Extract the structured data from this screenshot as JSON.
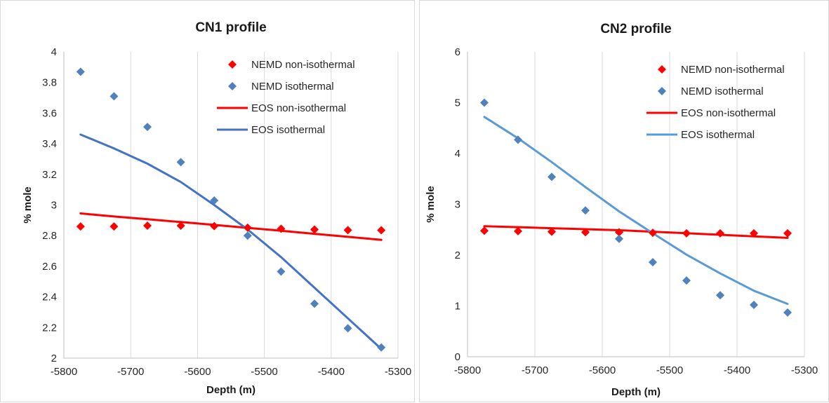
{
  "chart_data": [
    {
      "type": "scatter",
      "title": "CN1 profile",
      "xlabel": "Depth (m)",
      "ylabel": "% mole",
      "xlim": [
        -5800,
        -5300
      ],
      "ylim": [
        2,
        4
      ],
      "xticks": [
        "-5800",
        "-5700",
        "-5600",
        "-5500",
        "-5400",
        "-5300"
      ],
      "yticks": [
        "2",
        "2.2",
        "2.4",
        "2.6",
        "2.8",
        "3",
        "3.2",
        "3.4",
        "3.6",
        "3.8",
        "4"
      ],
      "grid": "vertical",
      "legend_position": "top-right",
      "series": [
        {
          "name": "NEMD non-isothermal",
          "kind": "marker",
          "color": "#ff0000",
          "x": [
            -5775,
            -5725,
            -5675,
            -5625,
            -5575,
            -5525,
            -5475,
            -5425,
            -5375,
            -5325
          ],
          "y": [
            2.86,
            2.86,
            2.865,
            2.865,
            2.862,
            2.852,
            2.845,
            2.84,
            2.836,
            2.835
          ]
        },
        {
          "name": "NEMD isothermal",
          "kind": "marker",
          "color": "#4f81bd",
          "x": [
            -5775,
            -5725,
            -5675,
            -5625,
            -5575,
            -5525,
            -5475,
            -5425,
            -5375,
            -5325
          ],
          "y": [
            3.87,
            3.71,
            3.51,
            3.28,
            3.03,
            2.8,
            2.565,
            2.355,
            2.195,
            2.07
          ]
        },
        {
          "name": "EOS non-isothermal",
          "kind": "line",
          "color": "#ff0000",
          "x": [
            -5775,
            -5725,
            -5675,
            -5625,
            -5575,
            -5525,
            -5475,
            -5425,
            -5375,
            -5325
          ],
          "y": [
            2.945,
            2.925,
            2.907,
            2.889,
            2.87,
            2.851,
            2.832,
            2.812,
            2.792,
            2.772
          ]
        },
        {
          "name": "EOS isothermal",
          "kind": "line",
          "color": "#4472c4",
          "x": [
            -5775,
            -5725,
            -5675,
            -5625,
            -5575,
            -5525,
            -5475,
            -5425,
            -5375,
            -5325
          ],
          "y": [
            3.46,
            3.37,
            3.27,
            3.15,
            3.0,
            2.84,
            2.66,
            2.46,
            2.26,
            2.06
          ]
        }
      ]
    },
    {
      "type": "scatter",
      "title": "CN2 profile",
      "xlabel": "Depth (m)",
      "ylabel": "% mole",
      "xlim": [
        -5800,
        -5300
      ],
      "ylim": [
        0,
        6
      ],
      "xticks": [
        "-5800",
        "-5700",
        "-5600",
        "-5500",
        "-5400",
        "-5300"
      ],
      "yticks": [
        "0",
        "1",
        "2",
        "3",
        "4",
        "5",
        "6"
      ],
      "grid": "vertical",
      "legend_position": "top-right",
      "series": [
        {
          "name": "NEMD non-isothermal",
          "kind": "marker",
          "color": "#ff0000",
          "x": [
            -5775,
            -5725,
            -5675,
            -5625,
            -5575,
            -5525,
            -5475,
            -5425,
            -5375,
            -5325
          ],
          "y": [
            2.48,
            2.47,
            2.46,
            2.45,
            2.45,
            2.44,
            2.43,
            2.43,
            2.43,
            2.43
          ]
        },
        {
          "name": "NEMD isothermal",
          "kind": "marker",
          "color": "#4f81bd",
          "x": [
            -5775,
            -5725,
            -5675,
            -5625,
            -5575,
            -5525,
            -5475,
            -5425,
            -5375,
            -5325
          ],
          "y": [
            5.0,
            4.27,
            3.54,
            2.88,
            2.32,
            1.86,
            1.5,
            1.21,
            1.02,
            0.87
          ]
        },
        {
          "name": "EOS non-isothermal",
          "kind": "line",
          "color": "#ff0000",
          "x": [
            -5775,
            -5725,
            -5675,
            -5625,
            -5575,
            -5525,
            -5475,
            -5425,
            -5375,
            -5325
          ],
          "y": [
            2.57,
            2.55,
            2.53,
            2.51,
            2.49,
            2.46,
            2.43,
            2.4,
            2.37,
            2.34
          ]
        },
        {
          "name": "EOS isothermal",
          "kind": "line",
          "color": "#5b9bd5",
          "x": [
            -5775,
            -5725,
            -5675,
            -5625,
            -5575,
            -5525,
            -5475,
            -5425,
            -5375,
            -5325
          ],
          "y": [
            4.72,
            4.3,
            3.83,
            3.34,
            2.86,
            2.43,
            2.01,
            1.64,
            1.3,
            1.04
          ]
        }
      ]
    }
  ]
}
